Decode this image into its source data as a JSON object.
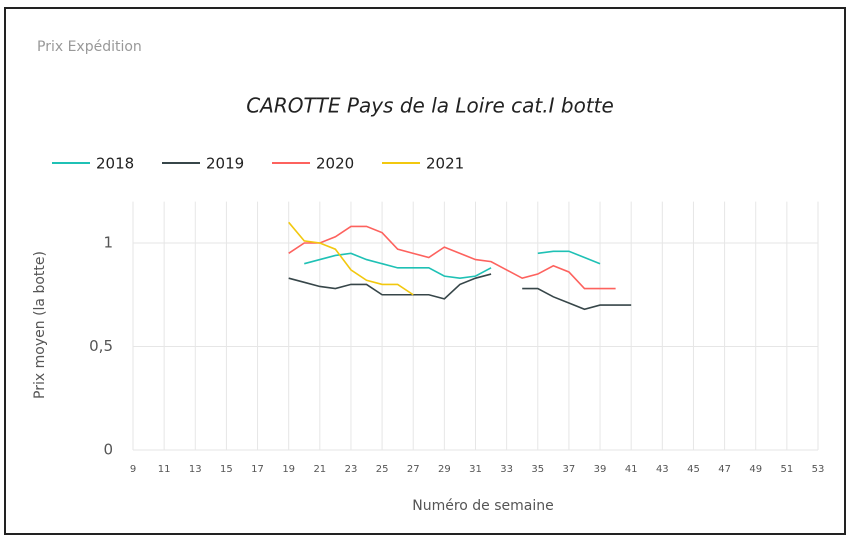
{
  "header": "Prix Expédition",
  "chart_data": {
    "type": "line",
    "title": "CAROTTE Pays de la Loire cat.I botte",
    "x_label": "Numéro de semaine",
    "y_label": "Prix moyen  (la botte)",
    "x": [
      19,
      20,
      21,
      22,
      23,
      24,
      25,
      26,
      27,
      28,
      29,
      30,
      31,
      32,
      33,
      34,
      35,
      36,
      37,
      38,
      39,
      40,
      41
    ],
    "series": [
      {
        "name": "2018",
        "color": "#1fc1b5",
        "values": [
          null,
          0.9,
          0.92,
          0.94,
          0.95,
          0.92,
          0.9,
          0.88,
          0.88,
          0.88,
          0.84,
          0.83,
          0.84,
          0.88,
          null,
          null,
          0.95,
          0.96,
          0.96,
          0.93,
          0.9,
          null,
          null
        ]
      },
      {
        "name": "2019",
        "color": "#374649",
        "values": [
          0.83,
          0.81,
          0.79,
          0.78,
          0.8,
          0.8,
          0.75,
          0.75,
          0.75,
          0.75,
          0.73,
          0.8,
          0.83,
          0.85,
          null,
          0.78,
          0.78,
          0.74,
          0.71,
          0.68,
          0.7,
          0.7,
          0.7
        ]
      },
      {
        "name": "2020",
        "color": "#fd625e",
        "values": [
          0.95,
          1.0,
          1.0,
          1.03,
          1.08,
          1.08,
          1.05,
          0.97,
          0.95,
          0.93,
          0.98,
          0.95,
          0.92,
          0.91,
          0.87,
          0.83,
          0.85,
          0.89,
          0.86,
          0.78,
          0.78,
          0.78,
          null
        ]
      },
      {
        "name": "2021",
        "color": "#f2c80f",
        "values": [
          1.1,
          1.01,
          1.0,
          0.97,
          0.87,
          0.82,
          0.8,
          0.8,
          0.75,
          null,
          null,
          null,
          null,
          null,
          null,
          null,
          null,
          null,
          null,
          null,
          null,
          null,
          null
        ]
      }
    ],
    "xlim": [
      9,
      53
    ],
    "xticks": [
      9,
      11,
      13,
      15,
      17,
      19,
      21,
      23,
      25,
      27,
      29,
      31,
      33,
      35,
      37,
      39,
      41,
      43,
      45,
      47,
      49,
      51,
      53
    ],
    "ylim": [
      0,
      1.2
    ],
    "yticks": [
      0,
      {
        "value": 0.5,
        "label": "0,5"
      },
      1
    ],
    "grid": true,
    "legend": "top-left"
  }
}
